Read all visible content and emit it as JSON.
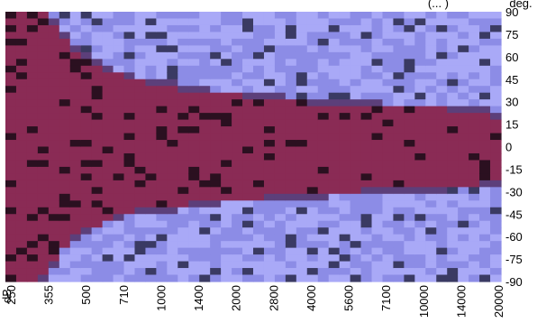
{
  "chart_data": {
    "type": "heatmap",
    "title": "(... )",
    "x_unit": "dB",
    "y_unit": "deg.",
    "x_ticks": [
      "250",
      "355",
      "500",
      "710",
      "1000",
      "1400",
      "2000",
      "2800",
      "4000",
      "5600",
      "7100",
      "10000",
      "14000",
      "20000"
    ],
    "y_ticks": [
      "90",
      "75",
      "60",
      "45",
      "30",
      "15",
      "0",
      "-15",
      "-30",
      "-45",
      "-60",
      "-75",
      "-90"
    ],
    "ylim": [
      -90,
      90
    ],
    "grid": false,
    "legend": "none",
    "colors": {
      "beam": "#8a2b55",
      "beam_dark": "#2b1020",
      "background": "#8c8ce6",
      "background_light": "#a9a9f7",
      "background_dark": "#3a3a63",
      "edge": "#5c3f7a"
    },
    "upper_boundary_deg": [
      90,
      90,
      90,
      88,
      82,
      72,
      65,
      58,
      54,
      50,
      48,
      46,
      44,
      42,
      42,
      40,
      38,
      36,
      36,
      35,
      34,
      34,
      33,
      32,
      32,
      31,
      30,
      30,
      29,
      29,
      28,
      28,
      27,
      27,
      27,
      26,
      26,
      26,
      25,
      25,
      25,
      24,
      24,
      24,
      22,
      20
    ],
    "lower_boundary_deg": [
      -90,
      -90,
      -90,
      -86,
      -78,
      -66,
      -60,
      -56,
      -52,
      -48,
      -46,
      -44,
      -42,
      -41,
      -40,
      -40,
      -39,
      -38,
      -37,
      -36,
      -35,
      -35,
      -34,
      -34,
      -33,
      -33,
      -32,
      -32,
      -31,
      -31,
      -30,
      -30,
      -30,
      -29,
      -29,
      -29,
      -28,
      -28,
      -28,
      -27,
      -27,
      -26,
      -26,
      -25,
      -24,
      -22
    ]
  }
}
